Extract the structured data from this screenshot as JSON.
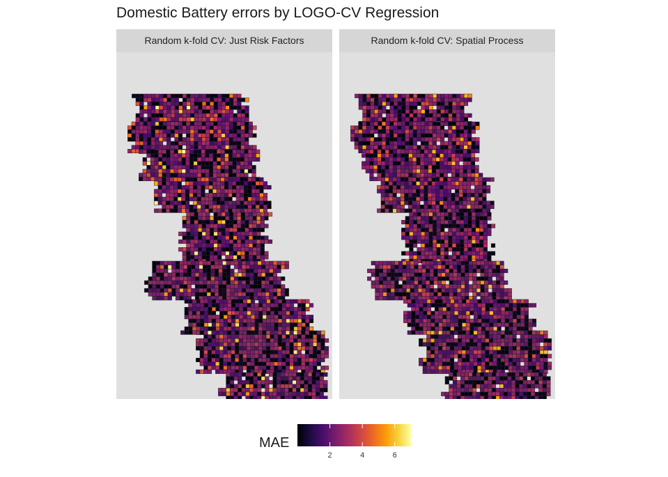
{
  "chart_data": {
    "type": "heatmap",
    "title": "Domestic Battery errors by LOGO-CV Regression",
    "panels": [
      {
        "name": "Random k-fold CV: Just Risk Factors",
        "seed": 11,
        "hotness": 1.0
      },
      {
        "name": "Random k-fold CV: Spatial Process",
        "seed": 29,
        "hotness": 0.6
      }
    ],
    "legend": {
      "title": "MAE",
      "placement": "bottom",
      "range": [
        0,
        7
      ],
      "ticks": [
        2,
        4,
        6
      ],
      "tick_labels": [
        "2",
        "4",
        "6"
      ],
      "colors": [
        "#000004",
        "#1b0c41",
        "#4a0c6b",
        "#781c6d",
        "#a52c60",
        "#cf4446",
        "#ed6925",
        "#fb9b06",
        "#f7d13d",
        "#fcffa4"
      ]
    },
    "grid": {
      "show": false
    }
  }
}
